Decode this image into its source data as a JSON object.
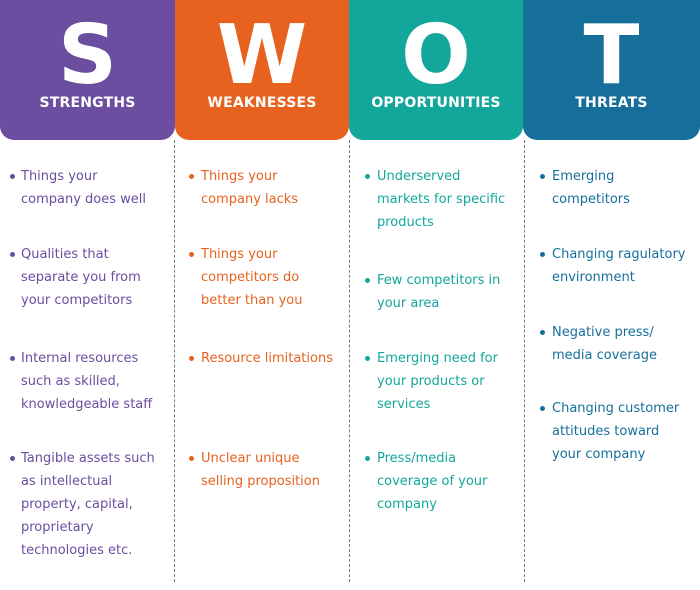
{
  "colors": {
    "strengths": "#6b4e9f",
    "weaknesses": "#e8621f",
    "opportunities": "#13a79b",
    "threats": "#166f9b"
  },
  "columns": [
    {
      "letter": "S",
      "label": "STRENGTHS",
      "items": [
        "Things your\ncompany does well",
        "Qualities that\nseparate you from\nyour competitors",
        "Internal resources\nsuch as skilled,\nknowledgeable staff",
        "Tangible assets such\nas intellectual\nproperty,  capital,\nproprietary\ntechnologies etc."
      ]
    },
    {
      "letter": "W",
      "label": "WEAKNESSES",
      "items": [
        "Things your\ncompany lacks",
        "Things your\ncompetitors do\nbetter than you",
        "Resource limitations",
        "Unclear unique\nselling proposition"
      ]
    },
    {
      "letter": "O",
      "label": "OPPORTUNITIES",
      "items": [
        "Underserved\nmarkets for specific\nproducts",
        "Few competitors in\nyour area",
        "Emerging need for\nyour products or\nservices",
        "Press/media\ncoverage of your\ncompany"
      ]
    },
    {
      "letter": "T",
      "label": "THREATS",
      "items": [
        "Emerging\ncompetitors",
        "Changing ragulatory\nenvironment",
        "Negative press/\nmedia coverage",
        "Changing customer\nattitudes toward\nyour company"
      ]
    }
  ]
}
